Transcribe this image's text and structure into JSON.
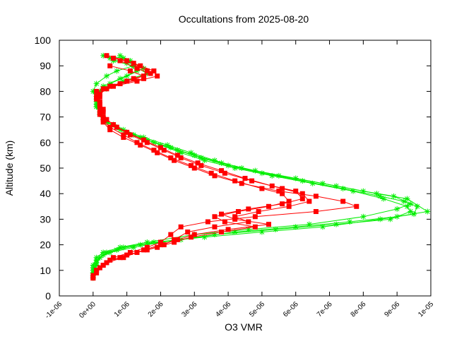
{
  "chart_data": {
    "type": "scatter",
    "title": "Occultations from 2025-08-20",
    "xlabel": "O3 VMR",
    "ylabel": "Altitude (km)",
    "xlim": [
      -1e-06,
      1e-05
    ],
    "ylim": [
      0,
      100
    ],
    "x_ticks": [
      -1e-06,
      0,
      1e-06,
      2e-06,
      3e-06,
      4e-06,
      5e-06,
      6e-06,
      7e-06,
      8e-06,
      9e-06,
      1e-05
    ],
    "x_tick_labels": [
      "-1e-06",
      "0e+00",
      "1e-06",
      "2e-06",
      "3e-06",
      "4e-06",
      "5e-06",
      "6e-06",
      "7e-06",
      "8e-06",
      "9e-06",
      "1e-05"
    ],
    "y_ticks": [
      0,
      10,
      20,
      30,
      40,
      50,
      60,
      70,
      80,
      90,
      100
    ],
    "y_tick_labels": [
      "0",
      "10",
      "20",
      "30",
      "40",
      "50",
      "60",
      "70",
      "80",
      "90",
      "100"
    ],
    "grid": false,
    "legend": "none",
    "series": [
      {
        "color": "#00ee00",
        "marker": "star",
        "profiles": [
          [
            [
              3e-07,
              94
            ],
            [
              9e-07,
              93
            ],
            [
              1.2e-06,
              90
            ],
            [
              7e-07,
              88
            ],
            [
              4e-07,
              86
            ],
            [
              1e-07,
              83
            ],
            [
              0.0,
              80
            ],
            [
              1e-07,
              77
            ],
            [
              1e-07,
              74
            ],
            [
              2e-07,
              71
            ],
            [
              4e-07,
              68
            ],
            [
              8e-07,
              65
            ],
            [
              1.4e-06,
              62
            ],
            [
              2e-06,
              59
            ],
            [
              2.6e-06,
              56
            ],
            [
              3.3e-06,
              53
            ],
            [
              4.2e-06,
              50
            ],
            [
              5.3e-06,
              47
            ],
            [
              6.5e-06,
              44
            ],
            [
              7.7e-06,
              41
            ],
            [
              8.6e-06,
              38
            ],
            [
              9.3e-06,
              35
            ],
            [
              9.4e-06,
              33
            ],
            [
              8.8e-06,
              30
            ],
            [
              7.2e-06,
              28
            ],
            [
              5.4e-06,
              26
            ],
            [
              3.6e-06,
              24
            ],
            [
              2e-06,
              21
            ],
            [
              1.2e-06,
              19
            ],
            [
              5e-07,
              17
            ],
            [
              2e-07,
              15
            ],
            [
              1e-07,
              13
            ],
            [
              0.0,
              10
            ],
            [
              0.0,
              7
            ]
          ],
          [
            [
              5e-07,
              93
            ],
            [
              1e-06,
              91
            ],
            [
              1.3e-06,
              88
            ],
            [
              8e-07,
              85
            ],
            [
              3e-07,
              82
            ],
            [
              1e-07,
              79
            ],
            [
              1e-07,
              75
            ],
            [
              2e-07,
              72
            ],
            [
              3e-07,
              69
            ],
            [
              7e-07,
              66
            ],
            [
              1.2e-06,
              63
            ],
            [
              1.8e-06,
              60
            ],
            [
              2.5e-06,
              57
            ],
            [
              3.2e-06,
              54
            ],
            [
              4e-06,
              51
            ],
            [
              5e-06,
              48
            ],
            [
              6.2e-06,
              45
            ],
            [
              7.4e-06,
              42
            ],
            [
              8.5e-06,
              39
            ],
            [
              9.2e-06,
              37
            ],
            [
              9.6e-06,
              35
            ],
            [
              9.5e-06,
              32
            ],
            [
              8.5e-06,
              30
            ],
            [
              6.8e-06,
              27
            ],
            [
              5e-06,
              25
            ],
            [
              3.3e-06,
              23
            ],
            [
              1.8e-06,
              21
            ],
            [
              9e-07,
              19
            ],
            [
              4e-07,
              17
            ],
            [
              2e-07,
              15
            ],
            [
              1e-07,
              12
            ],
            [
              0.0,
              9
            ]
          ],
          [
            [
              8e-07,
              94
            ],
            [
              1.1e-06,
              92
            ],
            [
              1.5e-06,
              89
            ],
            [
              1e-06,
              86
            ],
            [
              5e-07,
              83
            ],
            [
              2e-07,
              80
            ],
            [
              1e-07,
              76
            ],
            [
              2e-07,
              73
            ],
            [
              3e-07,
              70
            ],
            [
              6e-07,
              67
            ],
            [
              1e-06,
              64
            ],
            [
              1.6e-06,
              61
            ],
            [
              2.3e-06,
              58
            ],
            [
              3e-06,
              55
            ],
            [
              3.8e-06,
              52
            ],
            [
              4.8e-06,
              49
            ],
            [
              6e-06,
              46
            ],
            [
              7.2e-06,
              43
            ],
            [
              8.4e-06,
              40
            ],
            [
              9.3e-06,
              38
            ],
            [
              9.9e-06,
              33
            ],
            [
              9e-06,
              31
            ],
            [
              7.6e-06,
              29
            ],
            [
              6e-06,
              27
            ],
            [
              4.2e-06,
              25
            ],
            [
              2.6e-06,
              22
            ],
            [
              1.4e-06,
              20
            ],
            [
              7e-07,
              18
            ],
            [
              3e-07,
              16
            ],
            [
              1e-07,
              14
            ],
            [
              0.0,
              11
            ],
            [
              0.0,
              8
            ]
          ],
          [
            [
              6e-07,
              92
            ],
            [
              1.2e-06,
              90
            ],
            [
              1.6e-06,
              87
            ],
            [
              9e-07,
              84
            ],
            [
              4e-07,
              81
            ],
            [
              1e-07,
              78
            ],
            [
              1e-07,
              74
            ],
            [
              2e-07,
              71
            ],
            [
              4e-07,
              68
            ],
            [
              9e-07,
              65
            ],
            [
              1.5e-06,
              62
            ],
            [
              2.2e-06,
              59
            ],
            [
              2.9e-06,
              56
            ],
            [
              3.6e-06,
              53
            ],
            [
              4.4e-06,
              50
            ],
            [
              5.5e-06,
              47
            ],
            [
              6.8e-06,
              44
            ],
            [
              8e-06,
              41
            ],
            [
              8.9e-06,
              39
            ],
            [
              9.4e-06,
              36
            ],
            [
              9e-06,
              34
            ],
            [
              8e-06,
              31
            ],
            [
              6.4e-06,
              28
            ],
            [
              4.6e-06,
              26
            ],
            [
              3e-06,
              24
            ],
            [
              1.6e-06,
              21
            ],
            [
              8e-07,
              19
            ],
            [
              3e-07,
              17
            ],
            [
              1e-07,
              15
            ],
            [
              0.0,
              12
            ],
            [
              0.0,
              9
            ]
          ]
        ]
      },
      {
        "color": "#ff0000",
        "marker": "square",
        "profiles": [
          [
            [
              4e-07,
              94
            ],
            [
              1e-06,
              92
            ],
            [
              1.4e-06,
              90
            ],
            [
              1.8e-06,
              88
            ],
            [
              1.9e-06,
              86
            ],
            [
              1.3e-06,
              84
            ],
            [
              6e-07,
              82
            ],
            [
              1e-07,
              80
            ],
            [
              1e-07,
              77
            ],
            [
              2e-07,
              74
            ],
            [
              2e-07,
              71
            ],
            [
              3e-07,
              68
            ],
            [
              5e-07,
              65
            ],
            [
              9e-07,
              62
            ],
            [
              1.4e-06,
              59
            ],
            [
              1.9e-06,
              56
            ],
            [
              2.4e-06,
              53
            ],
            [
              3e-06,
              50
            ],
            [
              3.6e-06,
              47
            ],
            [
              4.4e-06,
              44
            ],
            [
              5.5e-06,
              41
            ],
            [
              6.6e-06,
              39
            ],
            [
              7.4e-06,
              37
            ],
            [
              7.8e-06,
              35
            ],
            [
              6.6e-06,
              33
            ],
            [
              4.8e-06,
              31
            ],
            [
              3.4e-06,
              29
            ],
            [
              2.6e-06,
              27
            ],
            [
              2.3e-06,
              24
            ],
            [
              2e-06,
              21
            ],
            [
              1.6e-06,
              19
            ],
            [
              1.1e-06,
              17
            ],
            [
              6e-07,
              15
            ],
            [
              3e-07,
              12
            ],
            [
              1e-07,
              10
            ],
            [
              0.0,
              7
            ]
          ],
          [
            [
              6e-07,
              93
            ],
            [
              1.2e-06,
              91
            ],
            [
              1.6e-06,
              88
            ],
            [
              1.5e-06,
              85
            ],
            [
              8e-07,
              83
            ],
            [
              3e-07,
              81
            ],
            [
              2e-07,
              78
            ],
            [
              2e-07,
              75
            ],
            [
              3e-07,
              72
            ],
            [
              4e-07,
              69
            ],
            [
              7e-07,
              66
            ],
            [
              1.1e-06,
              63
            ],
            [
              1.6e-06,
              60
            ],
            [
              2.1e-06,
              57
            ],
            [
              2.6e-06,
              54
            ],
            [
              3.2e-06,
              51
            ],
            [
              3.9e-06,
              48
            ],
            [
              4.7e-06,
              45
            ],
            [
              5.6e-06,
              42
            ],
            [
              6.2e-06,
              40
            ],
            [
              6.4e-06,
              37
            ],
            [
              5.8e-06,
              35
            ],
            [
              4.9e-06,
              33
            ],
            [
              4.2e-06,
              31
            ],
            [
              4.6e-06,
              29
            ],
            [
              3.6e-06,
              27
            ],
            [
              2.8e-06,
              25
            ],
            [
              2.4e-06,
              22
            ],
            [
              2.1e-06,
              20
            ],
            [
              1.6e-06,
              18
            ],
            [
              1e-06,
              16
            ],
            [
              5e-07,
              14
            ],
            [
              2e-07,
              11
            ],
            [
              0.0,
              8
            ]
          ],
          [
            [
              8e-07,
              92
            ],
            [
              1.3e-06,
              89
            ],
            [
              1.7e-06,
              87
            ],
            [
              1.2e-06,
              85
            ],
            [
              5e-07,
              82
            ],
            [
              2e-07,
              79
            ],
            [
              2e-07,
              76
            ],
            [
              3e-07,
              73
            ],
            [
              3e-07,
              70
            ],
            [
              6e-07,
              67
            ],
            [
              1e-06,
              64
            ],
            [
              1.5e-06,
              61
            ],
            [
              2e-06,
              58
            ],
            [
              2.5e-06,
              55
            ],
            [
              3.1e-06,
              52
            ],
            [
              3.8e-06,
              49
            ],
            [
              4.5e-06,
              46
            ],
            [
              5.3e-06,
              43
            ],
            [
              6e-06,
              41
            ],
            [
              6.2e-06,
              38
            ],
            [
              5.6e-06,
              36
            ],
            [
              4.6e-06,
              34
            ],
            [
              3.8e-06,
              32
            ],
            [
              4.2e-06,
              30
            ],
            [
              5.2e-06,
              28
            ],
            [
              4e-06,
              26
            ],
            [
              3e-06,
              24
            ],
            [
              2.5e-06,
              22
            ],
            [
              2e-06,
              20
            ],
            [
              1.5e-06,
              18
            ],
            [
              9e-07,
              15
            ],
            [
              4e-07,
              13
            ],
            [
              1e-07,
              10
            ],
            [
              0.0,
              7
            ]
          ],
          [
            [
              5e-07,
              90
            ],
            [
              1.1e-06,
              88
            ],
            [
              1.5e-06,
              86
            ],
            [
              1e-06,
              84
            ],
            [
              4e-07,
              81
            ],
            [
              1e-07,
              78
            ],
            [
              2e-07,
              75
            ],
            [
              2e-07,
              72
            ],
            [
              3e-07,
              69
            ],
            [
              5e-07,
              66
            ],
            [
              9e-07,
              63
            ],
            [
              1.3e-06,
              60
            ],
            [
              1.8e-06,
              57
            ],
            [
              2.3e-06,
              54
            ],
            [
              2.9e-06,
              51
            ],
            [
              3.5e-06,
              48
            ],
            [
              4.2e-06,
              45
            ],
            [
              5e-06,
              42
            ],
            [
              5.6e-06,
              40
            ],
            [
              5.8e-06,
              37
            ],
            [
              5.2e-06,
              35
            ],
            [
              4.3e-06,
              33
            ],
            [
              3.6e-06,
              31
            ],
            [
              3.9e-06,
              29
            ],
            [
              4.8e-06,
              27
            ],
            [
              3.8e-06,
              25
            ],
            [
              2.9e-06,
              23
            ],
            [
              2.4e-06,
              21
            ],
            [
              1.9e-06,
              19
            ],
            [
              1.3e-06,
              17
            ],
            [
              8e-07,
              15
            ],
            [
              3e-07,
              12
            ],
            [
              1e-07,
              9
            ]
          ]
        ]
      }
    ]
  }
}
